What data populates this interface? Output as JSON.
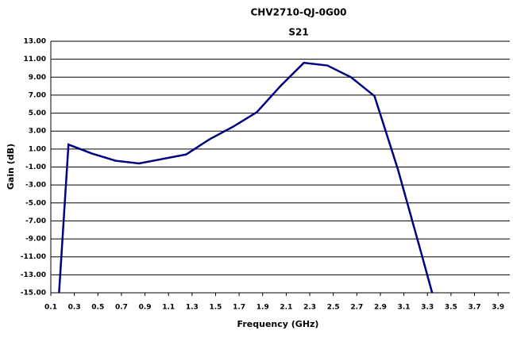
{
  "chart_data": {
    "type": "line",
    "title": "CHV2710-QJ-0G00",
    "subtitle": "S21",
    "x_label": "Frequency (GHz)",
    "y_label": "Gain (dB)",
    "x": [
      0.17,
      0.25,
      0.45,
      0.65,
      0.85,
      1.05,
      1.25,
      1.45,
      1.65,
      1.85,
      2.05,
      2.25,
      2.45,
      2.65,
      2.85,
      3.05,
      3.25,
      3.34
    ],
    "series": [
      {
        "name": "S21",
        "color": "#000080",
        "values": [
          -15,
          1.5,
          0.5,
          -0.3,
          -0.6,
          -0.1,
          0.4,
          2.1,
          3.5,
          5.1,
          8.0,
          10.6,
          10.3,
          9.0,
          6.9,
          -1.3,
          -10.7,
          -15
        ]
      }
    ],
    "xlim": [
      0.1,
      4.0
    ],
    "xticks": [
      0.1,
      0.3,
      0.5,
      0.7,
      0.9,
      1.1,
      1.3,
      1.5,
      1.7,
      1.9,
      2.1,
      2.3,
      2.5,
      2.7,
      2.9,
      3.1,
      3.3,
      3.5,
      3.7,
      3.9
    ],
    "ylim": [
      -15,
      13
    ],
    "yticks": [
      {
        "value": -15,
        "label": "-15.00"
      },
      {
        "value": -13,
        "label": "-13.00"
      },
      {
        "value": -11,
        "label": "-11.00"
      },
      {
        "value": -9,
        "label": "-9.00"
      },
      {
        "value": -7,
        "label": "-7.00"
      },
      {
        "value": -5,
        "label": "-5.00"
      },
      {
        "value": -3,
        "label": "-3.00"
      },
      {
        "value": -1,
        "label": "-1.00"
      },
      {
        "value": 1,
        "label": "1.00"
      },
      {
        "value": 3,
        "label": "3.00"
      },
      {
        "value": 5,
        "label": "5.00"
      },
      {
        "value": 7,
        "label": "7.00"
      },
      {
        "value": 9,
        "label": "9.00"
      },
      {
        "value": 11,
        "label": "11.00"
      },
      {
        "value": 13,
        "label": "13.00"
      }
    ],
    "grid": true
  }
}
